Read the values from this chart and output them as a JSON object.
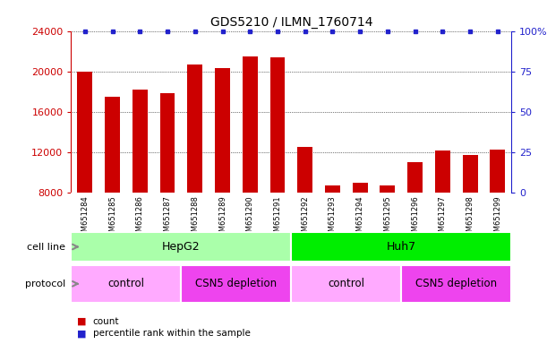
{
  "title": "GDS5210 / ILMN_1760714",
  "samples": [
    "GSM651284",
    "GSM651285",
    "GSM651286",
    "GSM651287",
    "GSM651288",
    "GSM651289",
    "GSM651290",
    "GSM651291",
    "GSM651292",
    "GSM651293",
    "GSM651294",
    "GSM651295",
    "GSM651296",
    "GSM651297",
    "GSM651298",
    "GSM651299"
  ],
  "counts": [
    20000,
    17500,
    18200,
    17800,
    20700,
    20300,
    21500,
    21400,
    12500,
    8700,
    9000,
    8700,
    11000,
    12200,
    11700,
    12300
  ],
  "bar_color": "#cc0000",
  "dot_color": "#2222cc",
  "ylim_left": [
    8000,
    24000
  ],
  "yticks_left": [
    8000,
    12000,
    16000,
    20000,
    24000
  ],
  "ylim_right": [
    0,
    100
  ],
  "yticks_right": [
    0,
    25,
    50,
    75,
    100
  ],
  "yticklabels_right": [
    "0",
    "25",
    "50",
    "75",
    "100%"
  ],
  "cell_line_groups": [
    {
      "label": "HepG2",
      "start": 0,
      "end": 8,
      "color": "#aaffaa"
    },
    {
      "label": "Huh7",
      "start": 8,
      "end": 16,
      "color": "#00ee00"
    }
  ],
  "protocol_groups": [
    {
      "label": "control",
      "start": 0,
      "end": 4,
      "color": "#ffaaff"
    },
    {
      "label": "CSN5 depletion",
      "start": 4,
      "end": 8,
      "color": "#ee44ee"
    },
    {
      "label": "control",
      "start": 8,
      "end": 12,
      "color": "#ffaaff"
    },
    {
      "label": "CSN5 depletion",
      "start": 12,
      "end": 16,
      "color": "#ee44ee"
    }
  ],
  "cell_line_label": "cell line",
  "protocol_label": "protocol",
  "legend_count_label": "count",
  "legend_pct_label": "percentile rank within the sample",
  "background_color": "#ffffff",
  "xticklabel_bg": "#cccccc",
  "bar_width": 0.55,
  "col_sep_color": "#ffffff"
}
